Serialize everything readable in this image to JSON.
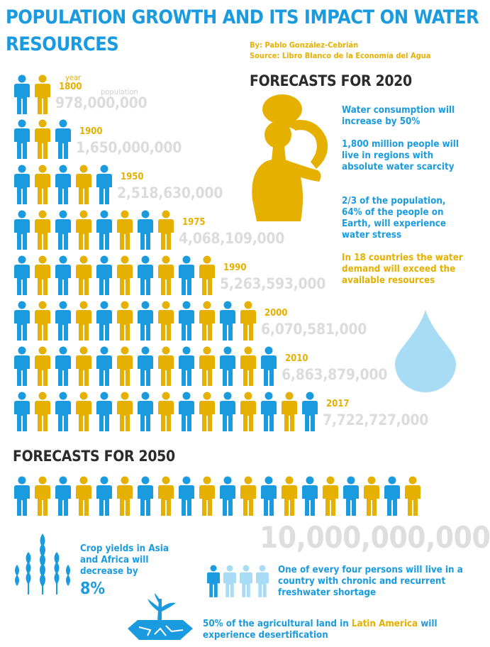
{
  "title": {
    "line1": "POPULATION GROWTH AND ITS IMPACT ON WATER",
    "line2": "RESOURCES"
  },
  "byline": {
    "author": "By: Pablo González-Cebrián",
    "source": "Source: Libro Blanco de la Economía del Agua"
  },
  "labels": {
    "year": "year",
    "population": "population"
  },
  "colors": {
    "blue": "#1a9be0",
    "gold": "#e6b000",
    "gray": "#dcdcdc",
    "light_blue": "#a8dcf5"
  },
  "timeline": [
    {
      "year": "1800",
      "population": "978,000,000",
      "figures": 2
    },
    {
      "year": "1900",
      "population": "1,650,000,000",
      "figures": 3
    },
    {
      "year": "1950",
      "population": "2,518,630,000",
      "figures": 5
    },
    {
      "year": "1975",
      "population": "4,068,109,000",
      "figures": 8
    },
    {
      "year": "1990",
      "population": "5,263,593,000",
      "figures": 10
    },
    {
      "year": "2000",
      "population": "6,070,581,000",
      "figures": 12
    },
    {
      "year": "2010",
      "population": "6,863,879,000",
      "figures": 13
    },
    {
      "year": "2017",
      "population": "7,722,727,000",
      "figures": 15
    }
  ],
  "forecast_2020": {
    "heading": "FORECASTS FOR 2020",
    "items": [
      {
        "text": "Water consumption will increase by 50%",
        "color": "blue"
      },
      {
        "text": "1,800 million people will live in regions with absolute water scarcity",
        "color": "blue"
      },
      {
        "text": "2/3 of the population, 64% of the people on Earth, will experience water stress",
        "color": "blue"
      },
      {
        "text": "In 18 countries the water demand will exceed the available resources",
        "color": "gold"
      }
    ]
  },
  "forecast_2050": {
    "heading": "FORECASTS FOR 2050",
    "figures": 20,
    "population": "10,000,000,000",
    "crop_text": "Crop yields in Asia and Africa will decrease by",
    "crop_pct": "8%",
    "shortage_text": "One of every four persons will live in a country with chronic and recurrent freshwater shortage",
    "latam_before": "50% of the agricultural land in ",
    "latam_highlight": "Latin America",
    "latam_after": " will experience desertification"
  }
}
